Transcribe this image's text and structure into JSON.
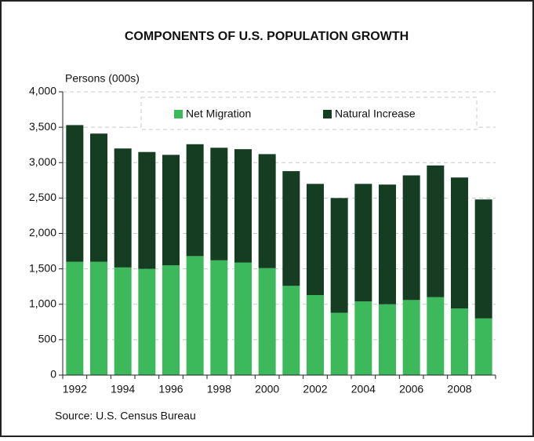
{
  "chart_data": {
    "type": "stacked_bar",
    "title": "COMPONENTS OF U.S. POPULATION GROWTH",
    "y_label": "Persons (000s)",
    "source": "Source: U.S. Census Bureau",
    "categories": [
      "1992",
      null,
      "1994",
      null,
      "1996",
      null,
      "1998",
      null,
      "2000",
      null,
      "2002",
      null,
      "2004",
      null,
      "2006",
      null,
      "2008",
      null
    ],
    "series": [
      {
        "name": "Net Migration",
        "color": "#3cb95a",
        "values": [
          1600,
          1600,
          1520,
          1500,
          1550,
          1680,
          1620,
          1590,
          1510,
          1260,
          1130,
          880,
          1040,
          1000,
          1060,
          1100,
          940,
          800
        ]
      },
      {
        "name": "Natural Increase",
        "color": "#143d22",
        "values": [
          1930,
          1810,
          1680,
          1650,
          1560,
          1580,
          1590,
          1600,
          1610,
          1620,
          1570,
          1620,
          1660,
          1690,
          1760,
          1860,
          1850,
          1680
        ]
      }
    ],
    "ylim": [
      0,
      4000
    ],
    "yticks": [
      0,
      500,
      {
        "value": 1000,
        "label": "1,000"
      },
      {
        "value": 1500,
        "label": "1,500"
      },
      {
        "value": 2000,
        "label": "2,000"
      },
      {
        "value": 2500,
        "label": "2,500"
      },
      {
        "value": 3000,
        "label": "3,000"
      },
      {
        "value": 3500,
        "label": "3,500"
      },
      {
        "value": 4000,
        "label": "4,000"
      }
    ],
    "grid": true,
    "legend": "top"
  }
}
